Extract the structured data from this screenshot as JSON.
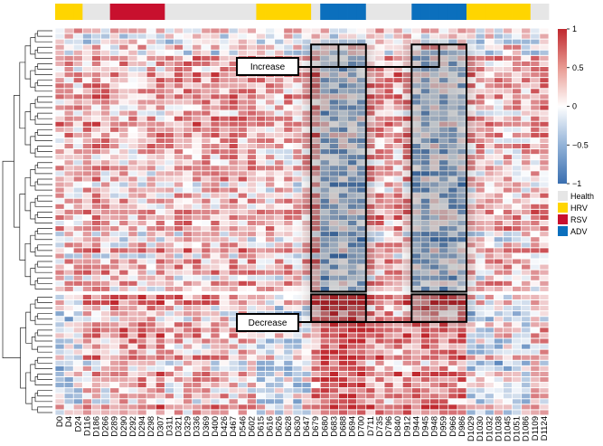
{
  "chart_data": {
    "type": "heatmap",
    "title": "",
    "xlabel": "",
    "ylabel": "",
    "columns": [
      "D0",
      "D4",
      "D24",
      "D116",
      "D186",
      "D266",
      "D289",
      "D290",
      "D292",
      "D294",
      "D298",
      "D307",
      "D311",
      "D321",
      "D329",
      "D336",
      "D369",
      "D400",
      "D426",
      "D467",
      "D546",
      "D602",
      "D615",
      "D616",
      "D626",
      "D628",
      "D630",
      "D647",
      "D679",
      "D680",
      "D683",
      "D688",
      "D694",
      "D700",
      "D711",
      "D735",
      "D796",
      "D840",
      "D912",
      "D944",
      "D945",
      "D948",
      "D959",
      "D966",
      "D986",
      "D1029",
      "D1030",
      "D1032",
      "D1038",
      "D1045",
      "D1051",
      "D1086",
      "D1109",
      "D1124"
    ],
    "visible_column_labels": [
      "D0",
      "D4",
      "D24",
      "D116",
      "D186",
      "D266",
      "D289",
      "D290",
      "D292",
      "D294",
      "D298",
      "D307",
      "D311",
      "D321",
      "D329",
      "D336",
      "D369",
      "D400",
      "D426",
      "D467",
      "D546",
      "D602",
      "D615",
      "D616",
      "D626",
      "D628",
      "D630",
      "D647",
      "D679",
      "D680",
      "D683",
      "D688",
      "D694",
      "D700",
      "D711",
      "D735",
      "D796",
      "D840",
      "D912",
      "D944",
      "D945",
      "D948",
      "D959",
      "D966",
      "D986",
      "D1029",
      "D1030",
      "D1032",
      "D1038",
      "D1045",
      "D1051",
      "D1086",
      "D1109",
      "D1124"
    ],
    "column_groups": [
      {
        "group": "HRV",
        "from": 0,
        "to": 2
      },
      {
        "group": "Health",
        "from": 3,
        "to": 5
      },
      {
        "group": "RSV",
        "from": 6,
        "to": 11
      },
      {
        "group": "Health",
        "from": 12,
        "to": 21
      },
      {
        "group": "HRV",
        "from": 22,
        "to": 27
      },
      {
        "group": "Health",
        "from": 28,
        "to": 28
      },
      {
        "group": "ADV",
        "from": 29,
        "to": 33
      },
      {
        "group": "Health",
        "from": 34,
        "to": 38
      },
      {
        "group": "ADV",
        "from": 39,
        "to": 44
      },
      {
        "group": "HRV",
        "from": 45,
        "to": 51
      },
      {
        "group": "Health",
        "from": 52,
        "to": 53
      }
    ],
    "row_count": 70,
    "row_clusters": [
      {
        "name": "Increase",
        "rows": 48
      },
      {
        "name": "Decrease",
        "rows": 22
      }
    ],
    "color_scale": {
      "min": -1,
      "max": 1,
      "ticks": [
        1,
        0.5,
        0,
        -0.5,
        -1
      ],
      "tick_labels": [
        "1",
        "0.5",
        "0",
        "−0.5",
        "−1"
      ],
      "colors": [
        "#3a6fb0",
        "#ffffff",
        "#c0282e"
      ]
    },
    "legend": {
      "position": "right",
      "entries": [
        {
          "label": "Health",
          "color": "#e6e6e6"
        },
        {
          "label": "HRV",
          "color": "#ffd500"
        },
        {
          "label": "RSV",
          "color": "#c8102e"
        },
        {
          "label": "ADV",
          "color": "#0b6fbd"
        }
      ]
    },
    "annotations": [
      {
        "label": "Increase",
        "target_rows": "Increase"
      },
      {
        "label": "Decrease",
        "target_rows": "Decrease"
      }
    ]
  }
}
